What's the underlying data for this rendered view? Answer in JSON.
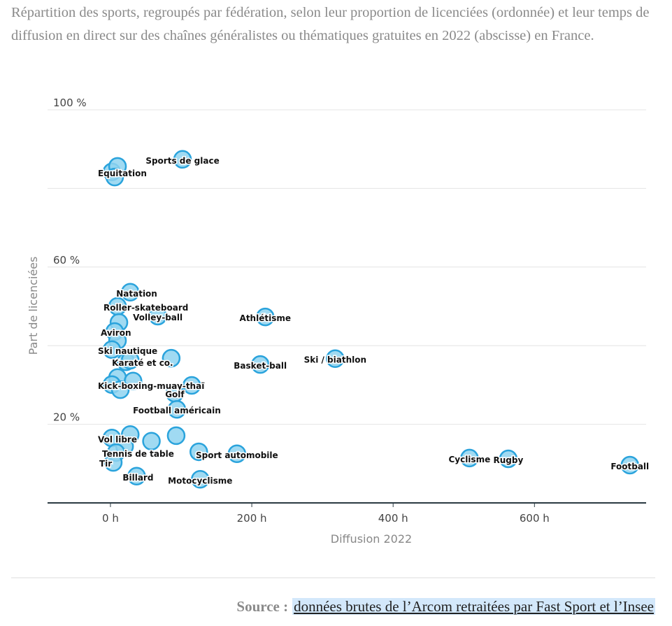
{
  "chart_data": {
    "type": "scatter",
    "subtitle": "Répartition des sports, regroupés par fédération, selon leur proportion de licenciées (ordonnée) et leur temps de diffusion en direct sur des chaînes généralistes ou thématiques gratuites en 2022 (abscisse) en France.",
    "x_label": "Diffusion 2022",
    "y_label": "Part de licenciées",
    "source_lead": "Source :",
    "source_text": "données brutes de l’Arcom retraitées par Fast Sport et l’Insee",
    "color": "#8fd3f0",
    "stroke": "#2aa3dc",
    "grid": true,
    "xlim": [
      -89,
      758
    ],
    "ylim": [
      0,
      100
    ],
    "xticks": [
      {
        "value": 0,
        "label": "0 h"
      },
      {
        "value": 200,
        "label": "200 h"
      },
      {
        "value": 400,
        "label": "400 h"
      },
      {
        "value": 600,
        "label": "600 h"
      }
    ],
    "yticks": [
      {
        "value": 20,
        "label": "20 %"
      },
      {
        "value": 40,
        "label": null
      },
      {
        "value": 60,
        "label": "60 %"
      },
      {
        "value": 80,
        "label": null
      },
      {
        "value": 100,
        "label": "100 %"
      }
    ],
    "x": [
      102,
      2,
      10,
      6,
      28,
      10,
      67,
      219,
      12,
      6,
      10,
      2,
      86,
      318,
      212,
      22,
      28,
      10,
      32,
      2,
      14,
      115,
      91,
      94,
      28,
      93,
      58,
      2,
      20,
      8,
      179,
      125,
      4,
      37,
      127,
      508,
      563,
      735
    ],
    "values": [
      87.4,
      84.2,
      85.6,
      82.9,
      53.6,
      50.0,
      47.5,
      47.3,
      45.9,
      43.6,
      41.3,
      39.0,
      36.8,
      36.7,
      35.2,
      35.9,
      36.3,
      31.9,
      31.0,
      30.1,
      28.8,
      29.9,
      27.9,
      23.8,
      17.4,
      17.1,
      15.7,
      16.5,
      14.4,
      12.8,
      12.5,
      13.0,
      10.3,
      6.8,
      6.0,
      11.4,
      11.2,
      9.6
    ],
    "labels": [
      "Sports de glace",
      "Equitation",
      null,
      null,
      "Natation",
      "Roller-skateboard",
      "Volley-ball",
      "Athlétisme",
      null,
      "Aviron",
      null,
      "Ski nautique",
      null,
      "Ski / biathlon",
      "Basket-ball",
      "Karaté et co.",
      null,
      null,
      null,
      "Kick-boxing-muay-thaï",
      null,
      null,
      "Golf",
      "Football américain",
      null,
      null,
      null,
      "Vol libre",
      null,
      "Tennis de table",
      "Sport automobile",
      null,
      "Tir",
      "Billard",
      "Motocyclisme",
      "Cyclisme",
      "Rugby",
      "Football"
    ]
  }
}
